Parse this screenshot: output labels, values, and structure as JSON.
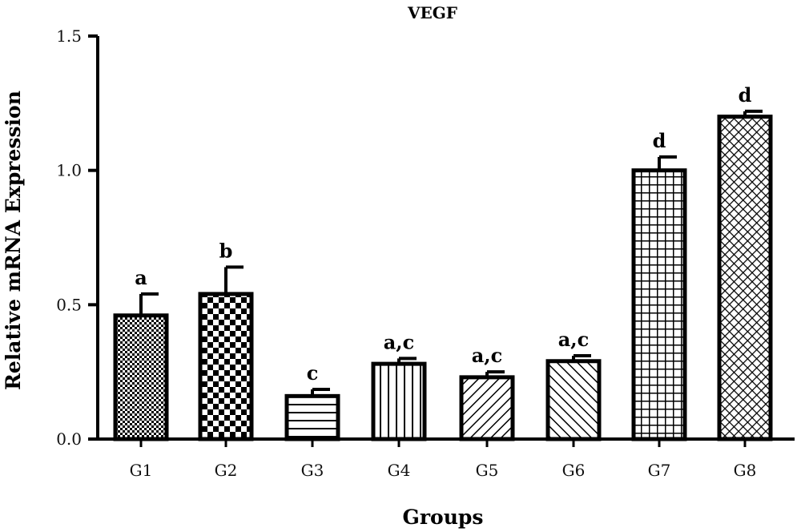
{
  "chart_data": {
    "type": "bar",
    "title": "VEGF",
    "xlabel": "Groups",
    "ylabel": "Relative mRNA Expression",
    "ylim": [
      0,
      1.5
    ],
    "yticks": [
      "0.0",
      "0.5",
      "1.0",
      "1.5"
    ],
    "categories": [
      "G1",
      "G2",
      "G3",
      "G4",
      "G5",
      "G6",
      "G7",
      "G8"
    ],
    "values": [
      0.46,
      0.54,
      0.16,
      0.28,
      0.23,
      0.29,
      1.0,
      1.2
    ],
    "errors": [
      0.08,
      0.1,
      0.025,
      0.02,
      0.02,
      0.02,
      0.05,
      0.02
    ],
    "significance_labels": [
      "a",
      "b",
      "c",
      "a,c",
      "a,c",
      "a,c",
      "d",
      "d"
    ],
    "bar_patterns": [
      "fine-checker",
      "checker",
      "horizontal-lines",
      "vertical-lines",
      "diagonal-lines",
      "diagonal-lines-reverse",
      "grid",
      "diagonal-crosshatch"
    ],
    "grid": false,
    "colors": {
      "bar_stroke": "#000000",
      "pattern": "#000000",
      "background": "#ffffff"
    }
  }
}
